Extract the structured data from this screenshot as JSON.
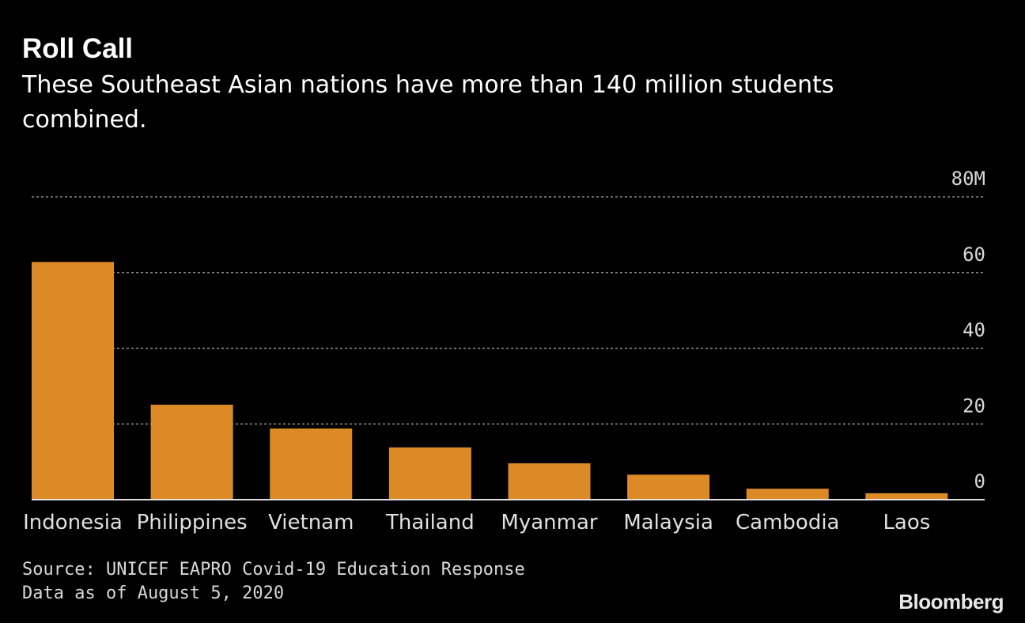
{
  "chart_data": {
    "type": "bar",
    "title": "Roll Call",
    "subtitle": "These Southeast Asian nations have more than 140 million students combined.",
    "categories": [
      "Indonesia",
      "Philippines",
      "Vietnam",
      "Thailand",
      "Myanmar",
      "Malaysia",
      "Cambodia",
      "Laos"
    ],
    "values": [
      62.8,
      25.1,
      18.8,
      13.8,
      9.6,
      6.6,
      2.9,
      1.7
    ],
    "ylim": [
      0,
      80
    ],
    "yticks": [
      0,
      20,
      40,
      60,
      80
    ],
    "ytick_labels": [
      "0",
      "20",
      "40",
      "60",
      "80M"
    ],
    "xlabel": "",
    "ylabel": "",
    "grid": true,
    "bar_color": "#dc8a26",
    "source": "Source: UNICEF EAPRO Covid-19 Education Response",
    "note": "Data as of August 5, 2020"
  },
  "brand": "Bloomberg"
}
